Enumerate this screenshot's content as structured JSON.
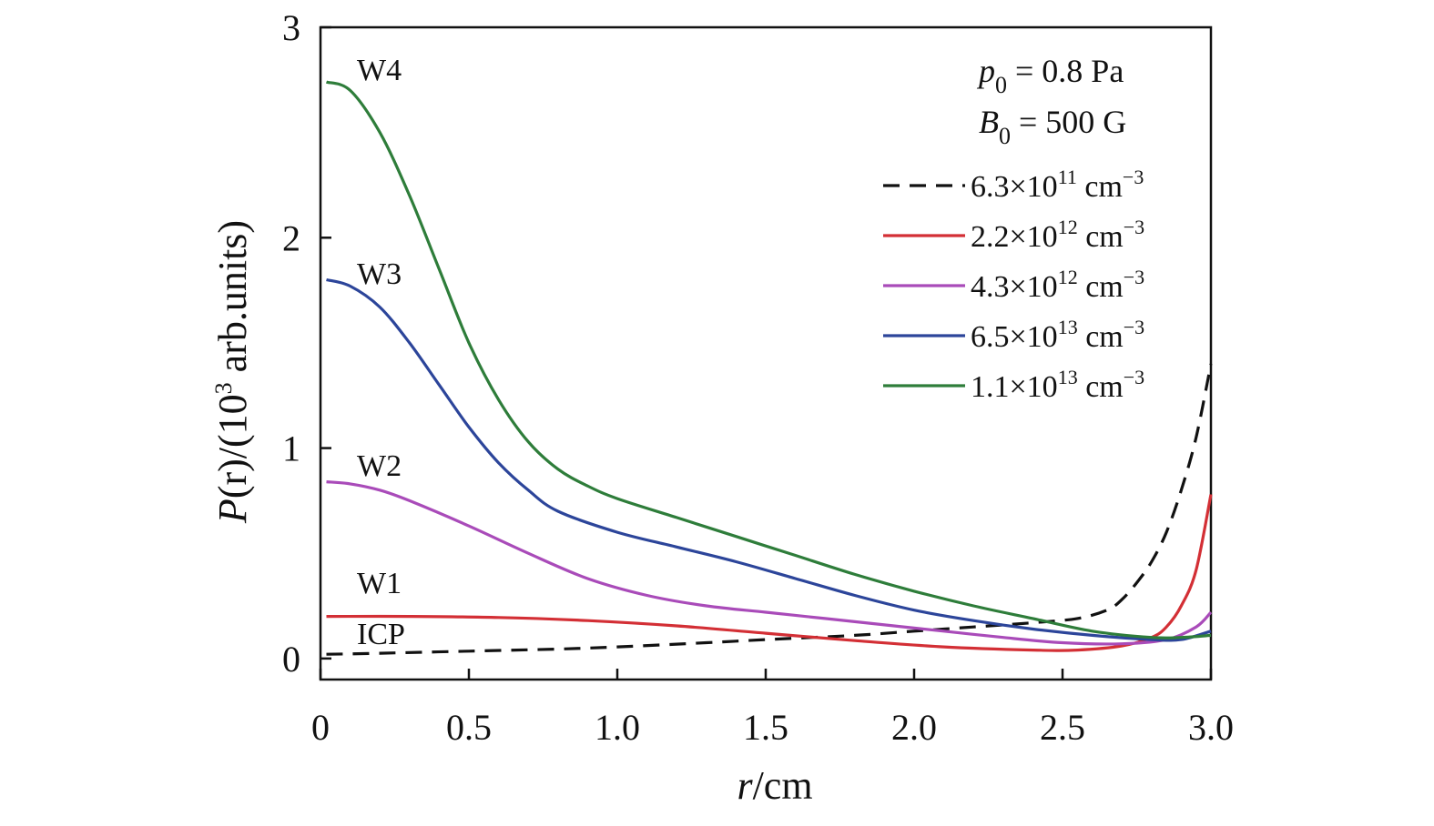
{
  "chart_data": {
    "type": "line",
    "xlabel": {
      "italic": "r",
      "rest": "/cm"
    },
    "ylabel": {
      "italic": "P",
      "rest": "(r)/(10",
      "sup": "3",
      "tail": " arb.units)"
    },
    "xlim": [
      0,
      3.0
    ],
    "ylim": [
      -0.1,
      3.0
    ],
    "xticks": [
      {
        "value": 0,
        "label": "0"
      },
      {
        "value": 0.5,
        "label": "0.5"
      },
      {
        "value": 1.0,
        "label": "1.0"
      },
      {
        "value": 1.5,
        "label": "1.5"
      },
      {
        "value": 2.0,
        "label": "2.0"
      },
      {
        "value": 2.5,
        "label": "2.5"
      },
      {
        "value": 3.0,
        "label": "3.0"
      }
    ],
    "yticks": [
      {
        "value": 0,
        "label": "0"
      },
      {
        "value": 1,
        "label": "1"
      },
      {
        "value": 2,
        "label": "2"
      },
      {
        "value": 3,
        "label": "3"
      }
    ],
    "grid": false,
    "legend_position": "top-right",
    "params": [
      {
        "sym": "p",
        "sub": "0",
        "rest": " = 0.8 Pa"
      },
      {
        "sym": "B",
        "sub": "0",
        "rest": " = 500 G"
      }
    ],
    "series": [
      {
        "name": "6.3×10",
        "sup_exp": "11",
        "unit": " cm",
        "unit_exp": "−3",
        "color": "#111111",
        "dashed": true,
        "curve_label": "ICP",
        "x": [
          0.02,
          0.2,
          0.5,
          0.8,
          1.0,
          1.3,
          1.5,
          1.8,
          2.0,
          2.2,
          2.4,
          2.55,
          2.65,
          2.7,
          2.75,
          2.8,
          2.85,
          2.9,
          2.95,
          3.0
        ],
        "y": [
          0.02,
          0.025,
          0.035,
          0.045,
          0.055,
          0.075,
          0.09,
          0.11,
          0.13,
          0.15,
          0.17,
          0.19,
          0.23,
          0.28,
          0.36,
          0.46,
          0.6,
          0.8,
          1.05,
          1.4
        ]
      },
      {
        "name": "2.2×10",
        "sup_exp": "12",
        "unit": " cm",
        "unit_exp": "−3",
        "color": "#d32f35",
        "dashed": false,
        "curve_label": "W1",
        "x": [
          0.02,
          0.3,
          0.6,
          0.9,
          1.2,
          1.5,
          1.8,
          2.1,
          2.4,
          2.55,
          2.7,
          2.8,
          2.85,
          2.9,
          2.95,
          3.0
        ],
        "y": [
          0.2,
          0.2,
          0.195,
          0.18,
          0.155,
          0.12,
          0.085,
          0.055,
          0.04,
          0.04,
          0.06,
          0.1,
          0.15,
          0.25,
          0.42,
          0.78
        ]
      },
      {
        "name": "4.3×10",
        "sup_exp": "12",
        "unit": " cm",
        "unit_exp": "−3",
        "color": "#a94bb9",
        "dashed": false,
        "curve_label": "W2",
        "x": [
          0.02,
          0.1,
          0.2,
          0.3,
          0.5,
          0.7,
          0.9,
          1.1,
          1.3,
          1.5,
          1.7,
          1.9,
          2.1,
          2.3,
          2.5,
          2.7,
          2.85,
          2.95,
          3.0
        ],
        "y": [
          0.84,
          0.83,
          0.8,
          0.75,
          0.63,
          0.5,
          0.38,
          0.3,
          0.25,
          0.22,
          0.19,
          0.16,
          0.13,
          0.1,
          0.075,
          0.07,
          0.09,
          0.15,
          0.22
        ]
      },
      {
        "name": "6.5×10",
        "sup_exp": "13",
        "unit": " cm",
        "unit_exp": "−3",
        "color": "#2c459a",
        "dashed": false,
        "curve_label": "W3",
        "x": [
          0.02,
          0.1,
          0.2,
          0.3,
          0.4,
          0.5,
          0.6,
          0.7,
          0.8,
          1.0,
          1.2,
          1.4,
          1.6,
          1.8,
          2.0,
          2.2,
          2.4,
          2.6,
          2.8,
          2.9,
          3.0
        ],
        "y": [
          1.8,
          1.77,
          1.67,
          1.5,
          1.3,
          1.1,
          0.93,
          0.8,
          0.7,
          0.6,
          0.53,
          0.46,
          0.38,
          0.3,
          0.23,
          0.18,
          0.14,
          0.11,
          0.09,
          0.09,
          0.13
        ]
      },
      {
        "name": "1.1×10",
        "sup_exp": "13",
        "unit": " cm",
        "unit_exp": "−3",
        "color": "#2e7d3a",
        "dashed": false,
        "curve_label": "W4",
        "x": [
          0.02,
          0.1,
          0.2,
          0.3,
          0.4,
          0.5,
          0.6,
          0.7,
          0.8,
          0.9,
          1.0,
          1.2,
          1.4,
          1.6,
          1.8,
          2.0,
          2.2,
          2.4,
          2.6,
          2.8,
          2.9,
          3.0
        ],
        "y": [
          2.74,
          2.7,
          2.5,
          2.2,
          1.85,
          1.5,
          1.23,
          1.03,
          0.9,
          0.82,
          0.76,
          0.67,
          0.58,
          0.49,
          0.4,
          0.32,
          0.25,
          0.19,
          0.13,
          0.1,
          0.1,
          0.11
        ]
      }
    ]
  }
}
